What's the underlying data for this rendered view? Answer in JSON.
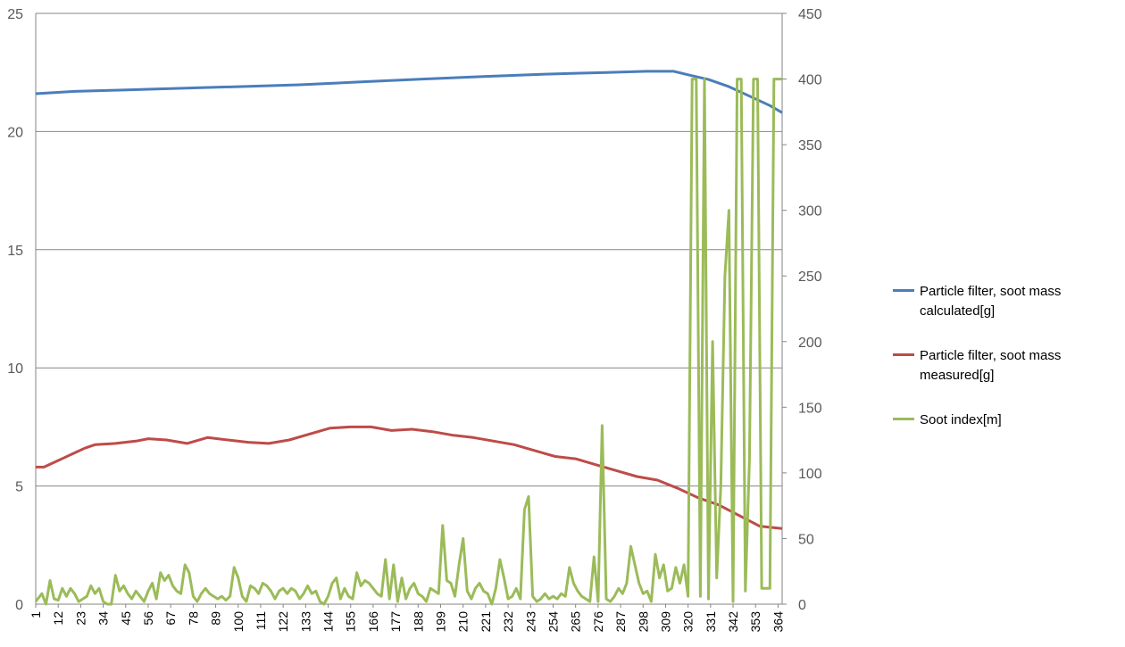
{
  "chart_data": {
    "type": "line",
    "title": "",
    "xlabel": "",
    "ylabel": "",
    "y2label": "",
    "ylim": [
      0,
      25
    ],
    "y2lim": [
      0,
      450
    ],
    "yticks": [
      "0",
      "5",
      "10",
      "15",
      "20",
      "25"
    ],
    "y2ticks": [
      "0",
      "50",
      "100",
      "150",
      "200",
      "250",
      "300",
      "350",
      "400",
      "450"
    ],
    "x_range": [
      1,
      366
    ],
    "x_tick_labels": [
      "1",
      "12",
      "23",
      "34",
      "45",
      "56",
      "67",
      "78",
      "89",
      "100",
      "111",
      "122",
      "133",
      "144",
      "155",
      "166",
      "177",
      "188",
      "199",
      "210",
      "221",
      "232",
      "243",
      "254",
      "265",
      "276",
      "287",
      "298",
      "309",
      "320",
      "331",
      "342",
      "353",
      "364"
    ],
    "grid": "horizontal",
    "legend_position": "right",
    "series": [
      {
        "name": "Particle filter, soot mass calculated[g]",
        "axis": "left",
        "color": "#4a7ebb",
        "points": [
          [
            1,
            21.6
          ],
          [
            10,
            21.65
          ],
          [
            20,
            21.7
          ],
          [
            40,
            21.75
          ],
          [
            60,
            21.8
          ],
          [
            80,
            21.85
          ],
          [
            100,
            21.9
          ],
          [
            130,
            21.98
          ],
          [
            160,
            22.1
          ],
          [
            190,
            22.22
          ],
          [
            220,
            22.33
          ],
          [
            250,
            22.43
          ],
          [
            280,
            22.5
          ],
          [
            300,
            22.55
          ],
          [
            313,
            22.55
          ],
          [
            320,
            22.4
          ],
          [
            330,
            22.2
          ],
          [
            340,
            21.9
          ],
          [
            350,
            21.5
          ],
          [
            360,
            21.1
          ],
          [
            366,
            20.8
          ]
        ]
      },
      {
        "name": "Particle filter, soot mass measured[g]",
        "axis": "left",
        "color": "#be4b48",
        "points": [
          [
            1,
            5.8
          ],
          [
            5,
            5.8
          ],
          [
            10,
            6.0
          ],
          [
            15,
            6.2
          ],
          [
            20,
            6.4
          ],
          [
            25,
            6.6
          ],
          [
            30,
            6.75
          ],
          [
            40,
            6.8
          ],
          [
            50,
            6.9
          ],
          [
            56,
            7.0
          ],
          [
            65,
            6.95
          ],
          [
            75,
            6.8
          ],
          [
            85,
            7.05
          ],
          [
            95,
            6.95
          ],
          [
            105,
            6.85
          ],
          [
            115,
            6.8
          ],
          [
            125,
            6.95
          ],
          [
            135,
            7.2
          ],
          [
            145,
            7.45
          ],
          [
            155,
            7.5
          ],
          [
            165,
            7.5
          ],
          [
            175,
            7.35
          ],
          [
            185,
            7.4
          ],
          [
            195,
            7.3
          ],
          [
            205,
            7.15
          ],
          [
            215,
            7.05
          ],
          [
            225,
            6.9
          ],
          [
            235,
            6.75
          ],
          [
            245,
            6.5
          ],
          [
            255,
            6.25
          ],
          [
            265,
            6.15
          ],
          [
            275,
            5.9
          ],
          [
            285,
            5.65
          ],
          [
            295,
            5.4
          ],
          [
            305,
            5.25
          ],
          [
            315,
            4.9
          ],
          [
            325,
            4.5
          ],
          [
            335,
            4.2
          ],
          [
            345,
            3.75
          ],
          [
            355,
            3.3
          ],
          [
            366,
            3.2
          ]
        ]
      },
      {
        "name": "Soot index[m]",
        "axis": "right",
        "color": "#9bbb59",
        "points": [
          [
            1,
            2
          ],
          [
            4,
            8
          ],
          [
            6,
            0
          ],
          [
            8,
            18
          ],
          [
            10,
            4
          ],
          [
            12,
            3
          ],
          [
            14,
            12
          ],
          [
            16,
            6
          ],
          [
            18,
            12
          ],
          [
            20,
            8
          ],
          [
            22,
            2
          ],
          [
            24,
            4
          ],
          [
            26,
            6
          ],
          [
            28,
            14
          ],
          [
            30,
            8
          ],
          [
            32,
            12
          ],
          [
            34,
            2
          ],
          [
            36,
            0
          ],
          [
            38,
            0
          ],
          [
            40,
            22
          ],
          [
            42,
            10
          ],
          [
            44,
            14
          ],
          [
            46,
            8
          ],
          [
            48,
            4
          ],
          [
            50,
            10
          ],
          [
            52,
            6
          ],
          [
            54,
            2
          ],
          [
            56,
            10
          ],
          [
            58,
            16
          ],
          [
            60,
            4
          ],
          [
            62,
            24
          ],
          [
            64,
            18
          ],
          [
            66,
            22
          ],
          [
            68,
            14
          ],
          [
            70,
            10
          ],
          [
            72,
            8
          ],
          [
            74,
            30
          ],
          [
            76,
            24
          ],
          [
            78,
            6
          ],
          [
            80,
            2
          ],
          [
            82,
            8
          ],
          [
            84,
            12
          ],
          [
            86,
            8
          ],
          [
            88,
            6
          ],
          [
            90,
            4
          ],
          [
            92,
            6
          ],
          [
            94,
            3
          ],
          [
            96,
            6
          ],
          [
            98,
            28
          ],
          [
            100,
            20
          ],
          [
            102,
            6
          ],
          [
            104,
            2
          ],
          [
            106,
            14
          ],
          [
            108,
            12
          ],
          [
            110,
            8
          ],
          [
            112,
            16
          ],
          [
            114,
            14
          ],
          [
            116,
            10
          ],
          [
            118,
            4
          ],
          [
            120,
            10
          ],
          [
            122,
            12
          ],
          [
            124,
            8
          ],
          [
            126,
            12
          ],
          [
            128,
            10
          ],
          [
            130,
            4
          ],
          [
            132,
            8
          ],
          [
            134,
            14
          ],
          [
            136,
            8
          ],
          [
            138,
            10
          ],
          [
            140,
            2
          ],
          [
            142,
            0
          ],
          [
            144,
            6
          ],
          [
            146,
            16
          ],
          [
            148,
            20
          ],
          [
            150,
            4
          ],
          [
            152,
            12
          ],
          [
            154,
            6
          ],
          [
            156,
            4
          ],
          [
            158,
            24
          ],
          [
            160,
            14
          ],
          [
            162,
            18
          ],
          [
            164,
            16
          ],
          [
            166,
            12
          ],
          [
            168,
            8
          ],
          [
            170,
            6
          ],
          [
            172,
            34
          ],
          [
            174,
            4
          ],
          [
            176,
            30
          ],
          [
            178,
            2
          ],
          [
            180,
            20
          ],
          [
            182,
            4
          ],
          [
            184,
            12
          ],
          [
            186,
            16
          ],
          [
            188,
            8
          ],
          [
            190,
            6
          ],
          [
            192,
            2
          ],
          [
            194,
            12
          ],
          [
            196,
            10
          ],
          [
            198,
            8
          ],
          [
            200,
            60
          ],
          [
            202,
            18
          ],
          [
            204,
            16
          ],
          [
            206,
            6
          ],
          [
            208,
            30
          ],
          [
            210,
            50
          ],
          [
            212,
            10
          ],
          [
            214,
            4
          ],
          [
            216,
            12
          ],
          [
            218,
            16
          ],
          [
            220,
            10
          ],
          [
            222,
            8
          ],
          [
            224,
            0
          ],
          [
            226,
            12
          ],
          [
            228,
            34
          ],
          [
            230,
            20
          ],
          [
            232,
            4
          ],
          [
            234,
            6
          ],
          [
            236,
            12
          ],
          [
            238,
            4
          ],
          [
            240,
            72
          ],
          [
            242,
            82
          ],
          [
            244,
            6
          ],
          [
            246,
            2
          ],
          [
            248,
            4
          ],
          [
            250,
            8
          ],
          [
            252,
            4
          ],
          [
            254,
            6
          ],
          [
            256,
            4
          ],
          [
            258,
            8
          ],
          [
            260,
            6
          ],
          [
            262,
            28
          ],
          [
            264,
            16
          ],
          [
            266,
            10
          ],
          [
            268,
            6
          ],
          [
            270,
            4
          ],
          [
            272,
            2
          ],
          [
            274,
            36
          ],
          [
            276,
            2
          ],
          [
            278,
            136
          ],
          [
            280,
            4
          ],
          [
            282,
            2
          ],
          [
            284,
            6
          ],
          [
            286,
            12
          ],
          [
            288,
            8
          ],
          [
            290,
            16
          ],
          [
            292,
            44
          ],
          [
            294,
            30
          ],
          [
            296,
            16
          ],
          [
            298,
            8
          ],
          [
            300,
            10
          ],
          [
            302,
            2
          ],
          [
            304,
            38
          ],
          [
            306,
            20
          ],
          [
            308,
            30
          ],
          [
            310,
            10
          ],
          [
            312,
            12
          ],
          [
            314,
            28
          ],
          [
            316,
            16
          ],
          [
            318,
            30
          ],
          [
            320,
            6
          ],
          [
            322,
            400
          ],
          [
            324,
            400
          ],
          [
            326,
            6
          ],
          [
            328,
            400
          ],
          [
            330,
            4
          ],
          [
            332,
            200
          ],
          [
            334,
            20
          ],
          [
            336,
            90
          ],
          [
            338,
            250
          ],
          [
            340,
            300
          ],
          [
            342,
            2
          ],
          [
            344,
            400
          ],
          [
            346,
            400
          ],
          [
            348,
            10
          ],
          [
            350,
            110
          ],
          [
            352,
            400
          ],
          [
            354,
            400
          ],
          [
            356,
            12
          ],
          [
            358,
            12
          ],
          [
            360,
            12
          ],
          [
            362,
            400
          ],
          [
            364,
            400
          ],
          [
            366,
            400
          ]
        ]
      }
    ]
  },
  "legend": {
    "calculated_label": "Particle filter, soot mass calculated[g]",
    "measured_label": "Particle filter, soot mass measured[g]",
    "soot_index_label": "Soot index[m]"
  }
}
